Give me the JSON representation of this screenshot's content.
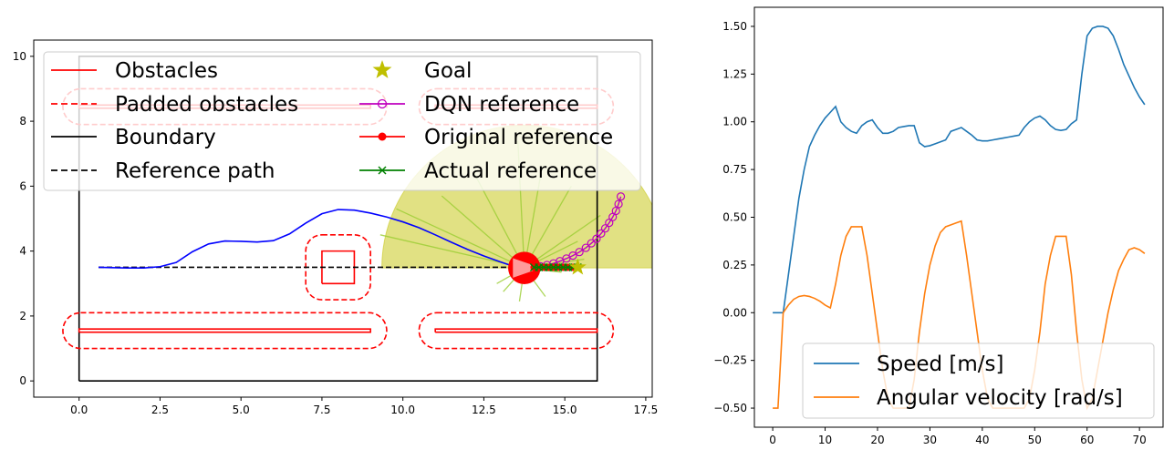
{
  "colors": {
    "obstacle": "#ff0000",
    "boundary": "#000000",
    "trajectory": "#0000ff",
    "dqn": "#bf00bf",
    "actual": "#008000",
    "goal": "#bfbf00",
    "sector_fill": "#c8c81e",
    "ray": "#9acd32",
    "speed": "#1f77b4",
    "angular": "#ff7f0e"
  },
  "chart_data": [
    {
      "type": "scatter",
      "title": "",
      "xlabel": "",
      "ylabel": "",
      "xlim": [
        -1.4,
        17.7
      ],
      "ylim": [
        -0.5,
        10.5
      ],
      "xticks": [
        "0.0",
        "2.5",
        "5.0",
        "7.5",
        "10.0",
        "12.5",
        "15.0",
        "17.5"
      ],
      "yticks": [
        "0",
        "2",
        "4",
        "6",
        "8",
        "10"
      ],
      "legend": {
        "placement": "top",
        "entries": [
          "Obstacles",
          "Padded obstacles",
          "Boundary",
          "Reference path",
          "Goal",
          "DQN reference",
          "Original reference",
          "Actual reference"
        ]
      },
      "boundary": [
        [
          0,
          0
        ],
        [
          16,
          0
        ],
        [
          16,
          10
        ],
        [
          0,
          10
        ],
        [
          0,
          0
        ]
      ],
      "obstacles": [
        [
          [
            7.5,
            3.0
          ],
          [
            8.5,
            3.0
          ],
          [
            8.5,
            4.0
          ],
          [
            7.5,
            4.0
          ],
          [
            7.5,
            3.0
          ]
        ],
        [
          [
            0,
            1.5
          ],
          [
            9.0,
            1.5
          ],
          [
            9.0,
            1.6
          ],
          [
            0,
            1.6
          ],
          [
            0,
            1.5
          ]
        ],
        [
          [
            11.0,
            1.5
          ],
          [
            16.0,
            1.5
          ],
          [
            16.0,
            1.6
          ],
          [
            11.0,
            1.6
          ],
          [
            11.0,
            1.5
          ]
        ],
        [
          [
            0,
            8.4
          ],
          [
            9.0,
            8.4
          ],
          [
            9.0,
            8.5
          ],
          [
            0,
            8.5
          ],
          [
            0,
            8.4
          ]
        ],
        [
          [
            11.0,
            8.4
          ],
          [
            16.0,
            8.4
          ],
          [
            16.0,
            8.5
          ],
          [
            11.0,
            8.5
          ],
          [
            11.0,
            8.4
          ]
        ]
      ],
      "padded_obstacles": [
        {
          "x": [
            7.0,
            9.0
          ],
          "y": [
            2.5,
            4.5
          ],
          "r": 0.5
        },
        {
          "x": [
            -0.5,
            9.5
          ],
          "y": [
            1.0,
            2.1
          ],
          "r": 0.55
        },
        {
          "x": [
            10.5,
            16.5
          ],
          "y": [
            1.0,
            2.1
          ],
          "r": 0.55
        },
        {
          "x": [
            -0.5,
            9.5
          ],
          "y": [
            7.9,
            9.0
          ],
          "r": 0.55
        },
        {
          "x": [
            10.5,
            16.5
          ],
          "y": [
            7.9,
            9.0
          ],
          "r": 0.55
        }
      ],
      "reference_path": {
        "x": [
          0.6,
          15.4
        ],
        "y": [
          3.5,
          3.5
        ]
      },
      "trajectory": {
        "x": [
          0.6,
          1.0,
          1.5,
          2.0,
          2.5,
          3.0,
          3.5,
          4.0,
          4.5,
          5.0,
          5.5,
          6.0,
          6.5,
          7.0,
          7.5,
          8.0,
          8.5,
          9.0,
          9.5,
          10.0,
          10.5,
          11.0,
          11.5,
          12.0,
          12.5,
          13.0,
          13.3,
          13.6,
          13.75
        ],
        "y": [
          3.5,
          3.49,
          3.48,
          3.48,
          3.52,
          3.65,
          3.98,
          4.22,
          4.31,
          4.3,
          4.28,
          4.32,
          4.53,
          4.86,
          5.15,
          5.28,
          5.26,
          5.17,
          5.05,
          4.9,
          4.72,
          4.5,
          4.27,
          4.05,
          3.85,
          3.67,
          3.57,
          3.5,
          3.48
        ]
      },
      "robot": {
        "x": 13.75,
        "y": 3.48,
        "heading_deg": 0
      },
      "sector": {
        "center": [
          13.75,
          3.48
        ],
        "radius": 4.4,
        "start_deg": 0,
        "end_deg": 180
      },
      "lidar_rays": [
        [
          16.1,
          5.1
        ],
        [
          15.2,
          6.0
        ],
        [
          14.3,
          6.6
        ],
        [
          13.55,
          7.4
        ],
        [
          12.2,
          6.4
        ],
        [
          11.2,
          5.7
        ],
        [
          9.8,
          5.3
        ],
        [
          9.3,
          4.5
        ],
        [
          15.4,
          4.3
        ],
        [
          15.6,
          3.75
        ],
        [
          14.9,
          3.35
        ],
        [
          13.1,
          2.75
        ],
        [
          13.6,
          2.45
        ],
        [
          12.9,
          3.0
        ],
        [
          14.4,
          2.6
        ]
      ],
      "goal": {
        "x": 15.4,
        "y": 3.5
      },
      "dqn_reference": {
        "x": [
          14.05,
          14.25,
          14.45,
          14.65,
          14.85,
          15.05,
          15.25,
          15.45,
          15.65,
          15.82,
          15.98,
          16.12,
          16.25,
          16.37,
          16.48,
          16.58,
          16.66,
          16.73
        ],
        "y": [
          3.5,
          3.53,
          3.57,
          3.62,
          3.69,
          3.77,
          3.86,
          3.97,
          4.1,
          4.24,
          4.38,
          4.54,
          4.7,
          4.87,
          5.05,
          5.24,
          5.45,
          5.68
        ]
      },
      "original_reference": {
        "x": [
          14.05,
          14.2,
          14.35,
          14.5,
          14.65,
          14.8,
          14.95,
          15.1,
          15.25,
          15.4
        ],
        "y": [
          3.5,
          3.5,
          3.5,
          3.5,
          3.5,
          3.5,
          3.5,
          3.5,
          3.5,
          3.5
        ]
      },
      "actual_reference": {
        "x": [
          14.05,
          14.2,
          14.35,
          14.5,
          14.65,
          14.8,
          14.95,
          15.1,
          15.25,
          15.4
        ],
        "y": [
          3.5,
          3.5,
          3.5,
          3.5,
          3.5,
          3.5,
          3.5,
          3.5,
          3.5,
          3.5
        ]
      }
    },
    {
      "type": "line",
      "title": "",
      "xlabel": "",
      "ylabel": "",
      "xlim": [
        -3.5,
        74.5
      ],
      "ylim": [
        -0.6,
        1.6
      ],
      "grid": false,
      "xticks": [
        "0",
        "10",
        "20",
        "30",
        "40",
        "50",
        "60",
        "70"
      ],
      "yticks": [
        "−0.50",
        "−0.25",
        "0.00",
        "0.25",
        "0.50",
        "0.75",
        "1.00",
        "1.25",
        "1.50"
      ],
      "legend": {
        "placement": "bottom-right",
        "entries": [
          "Speed [m/s]",
          "Angular velocity [rad/s]"
        ]
      },
      "series": [
        {
          "name": "Speed [m/s]",
          "x": [
            0,
            1,
            2,
            3,
            4,
            5,
            6,
            7,
            8,
            9,
            10,
            11,
            12,
            13,
            14,
            15,
            16,
            17,
            18,
            19,
            20,
            21,
            22,
            23,
            24,
            25,
            26,
            27,
            28,
            29,
            30,
            31,
            32,
            33,
            34,
            35,
            36,
            37,
            38,
            39,
            40,
            41,
            42,
            43,
            44,
            45,
            46,
            47,
            48,
            49,
            50,
            51,
            52,
            53,
            54,
            55,
            56,
            57,
            58,
            59,
            60,
            61,
            62,
            63,
            64,
            65,
            66,
            67,
            68,
            69,
            70,
            71
          ],
          "values": [
            0.0,
            0.0,
            0.0,
            0.2,
            0.4,
            0.6,
            0.75,
            0.87,
            0.93,
            0.98,
            1.02,
            1.05,
            1.08,
            1.0,
            0.97,
            0.95,
            0.94,
            0.98,
            1.0,
            1.01,
            0.97,
            0.94,
            0.94,
            0.95,
            0.97,
            0.975,
            0.98,
            0.98,
            0.89,
            0.87,
            0.875,
            0.885,
            0.895,
            0.905,
            0.95,
            0.96,
            0.97,
            0.95,
            0.93,
            0.905,
            0.9,
            0.9,
            0.905,
            0.91,
            0.915,
            0.92,
            0.925,
            0.93,
            0.97,
            1.0,
            1.02,
            1.03,
            1.01,
            0.98,
            0.96,
            0.955,
            0.96,
            0.99,
            1.01,
            1.25,
            1.45,
            1.49,
            1.5,
            1.5,
            1.49,
            1.45,
            1.38,
            1.3,
            1.24,
            1.18,
            1.13,
            1.09
          ]
        },
        {
          "name": "Angular velocity [rad/s]",
          "x": [
            0,
            1,
            2,
            3,
            4,
            5,
            6,
            7,
            8,
            9,
            10,
            11,
            12,
            13,
            14,
            15,
            16,
            17,
            18,
            19,
            20,
            21,
            22,
            23,
            24,
            25,
            26,
            27,
            28,
            29,
            30,
            31,
            32,
            33,
            34,
            35,
            36,
            37,
            38,
            39,
            40,
            41,
            42,
            43,
            44,
            45,
            46,
            47,
            48,
            49,
            50,
            51,
            52,
            53,
            54,
            55,
            56,
            57,
            58,
            59,
            60,
            61,
            62,
            63,
            64,
            65,
            66,
            67,
            68,
            69,
            70,
            71
          ],
          "values": [
            -0.5,
            -0.5,
            0.0,
            0.04,
            0.07,
            0.085,
            0.09,
            0.085,
            0.075,
            0.06,
            0.04,
            0.025,
            0.15,
            0.3,
            0.4,
            0.45,
            0.45,
            0.45,
            0.3,
            0.1,
            -0.1,
            -0.3,
            -0.45,
            -0.5,
            -0.5,
            -0.5,
            -0.5,
            -0.35,
            -0.1,
            0.1,
            0.25,
            0.35,
            0.42,
            0.45,
            0.46,
            0.47,
            0.48,
            0.3,
            0.1,
            -0.1,
            -0.3,
            -0.45,
            -0.5,
            -0.5,
            -0.5,
            -0.5,
            -0.5,
            -0.5,
            -0.5,
            -0.45,
            -0.3,
            -0.1,
            0.15,
            0.3,
            0.4,
            0.4,
            0.4,
            0.2,
            -0.1,
            -0.35,
            -0.5,
            -0.45,
            -0.3,
            -0.15,
            0.0,
            0.12,
            0.22,
            0.28,
            0.33,
            0.34,
            0.33,
            0.31
          ]
        }
      ]
    }
  ]
}
